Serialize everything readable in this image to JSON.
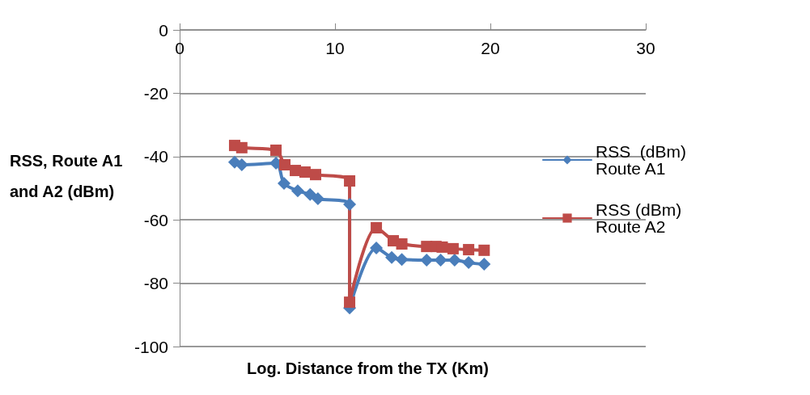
{
  "chart_data": {
    "type": "line",
    "xlabel": "Log. Distance from the TX (Km)",
    "ylabel": "RSS, Route A1 and A2 (dBm)",
    "xlim": [
      0,
      30
    ],
    "xticks": [
      0,
      10,
      20,
      30
    ],
    "ylim": [
      -100,
      0
    ],
    "yticks": [
      -100,
      -80,
      -60,
      -40,
      -20,
      0
    ],
    "grid": "y",
    "legend": "right",
    "series": [
      {
        "name": "RSS  (dBm) Route A1",
        "color": "#4a7ebb",
        "marker": "diamond",
        "x": [
          3.54,
          4.0,
          6.2,
          6.72,
          7.6,
          8.4,
          8.9,
          10.94,
          10.94,
          12.66,
          13.65,
          14.3,
          15.9,
          16.8,
          17.7,
          18.6,
          19.6
        ],
        "values": [
          -41.8,
          -42.6,
          -42.1,
          -48.5,
          -50.8,
          -52,
          -53.3,
          -55.1,
          -87.8,
          -68.9,
          -71.9,
          -72.5,
          -72.7,
          -72.7,
          -72.7,
          -73.5,
          -74
        ]
      },
      {
        "name": "RSS (dBm) Route A2",
        "color": "#be4b48",
        "marker": "square",
        "x": [
          3.54,
          4.0,
          6.2,
          6.77,
          7.45,
          8.07,
          8.75,
          10.94,
          10.94,
          12.66,
          13.75,
          14.3,
          15.9,
          16.5,
          16.9,
          17.6,
          18.6,
          19.6
        ],
        "values": [
          -36.5,
          -37.2,
          -38,
          -42.6,
          -44.4,
          -44.9,
          -45.7,
          -47.7,
          -86,
          -62.5,
          -66.6,
          -67.6,
          -68.4,
          -68.4,
          -68.6,
          -69.1,
          -69.4,
          -69.6
        ]
      }
    ]
  }
}
